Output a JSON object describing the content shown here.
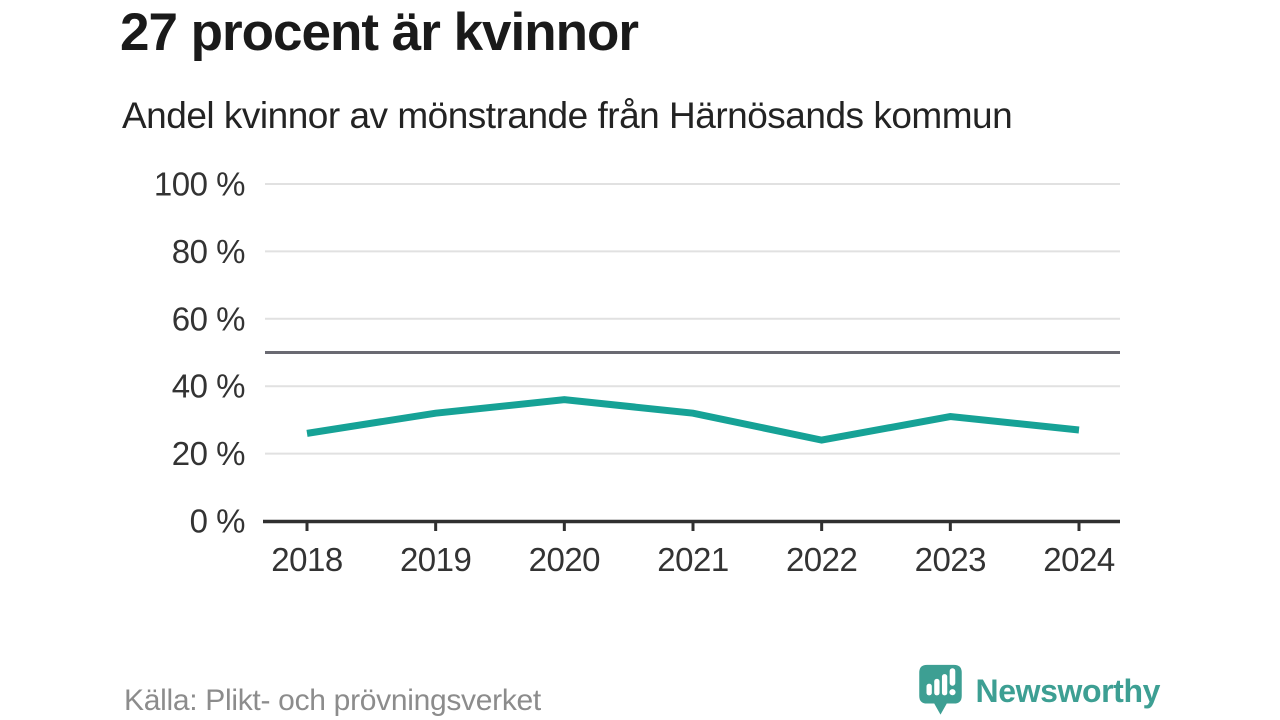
{
  "header": {
    "title": "27 procent är kvinnor",
    "subtitle": "Andel kvinnor av mönstrande från Härnösands kommun"
  },
  "footer": {
    "source": "Källa: Plikt- och prövningsverket",
    "brand": "Newsworthy",
    "brand_icon": "newsworthy-chart-bubble-icon"
  },
  "colors": {
    "line": "#16a296",
    "grid": "#e1e1e1",
    "reference_line": "#6a6a72",
    "axis": "#303030",
    "axis_text": "#333333",
    "brand": "#3d9f93",
    "source_text": "#8c8c8c"
  },
  "chart_data": {
    "type": "line",
    "title": "27 procent är kvinnor",
    "subtitle": "Andel kvinnor av mönstrande från Härnösands kommun",
    "categories": [
      "2018",
      "2019",
      "2020",
      "2021",
      "2022",
      "2023",
      "2024"
    ],
    "values": [
      26,
      32,
      36,
      32,
      24,
      31,
      27
    ],
    "unit": "%",
    "ylim": [
      0,
      100
    ],
    "y_ticks": [
      {
        "value": 0,
        "label": "0 %"
      },
      {
        "value": 20,
        "label": "20 %"
      },
      {
        "value": 40,
        "label": "40 %"
      },
      {
        "value": 60,
        "label": "60 %"
      },
      {
        "value": 80,
        "label": "80 %"
      },
      {
        "value": 100,
        "label": "100 %"
      }
    ],
    "reference_line": {
      "value": 50
    },
    "grid": true,
    "legend": false,
    "xlabel": "",
    "ylabel": ""
  }
}
